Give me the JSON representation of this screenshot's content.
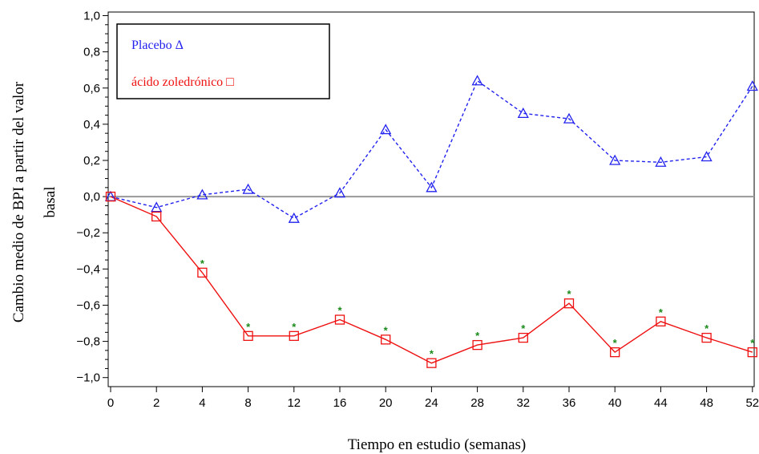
{
  "chart_data": {
    "type": "line",
    "xlabel": "Tiempo en estudio (semanas)",
    "ylabel_lines": [
      "Cambio medio de BPI a partir del valor",
      "basal"
    ],
    "categories": [
      "0",
      "2",
      "4",
      "8",
      "12",
      "16",
      "20",
      "24",
      "28",
      "32",
      "36",
      "40",
      "44",
      "48",
      "52"
    ],
    "y_ticks": [
      "1,0",
      "0,8",
      "0,6",
      "0,4",
      "0,2",
      "0,0",
      "−0,2",
      "−0,4",
      "−0,6",
      "−0,8",
      "−1,0"
    ],
    "y_tick_values": [
      1.0,
      0.8,
      0.6,
      0.4,
      0.2,
      0.0,
      -0.2,
      -0.4,
      -0.6,
      -0.8,
      -1.0
    ],
    "ylim": [
      -1.05,
      1.02
    ],
    "reference_line": 0.0,
    "series": [
      {
        "legend": "Placebo Δ",
        "marker": "triangle",
        "line": "dashed",
        "color": "#2222ee",
        "values": [
          0.0,
          -0.06,
          0.01,
          0.04,
          -0.12,
          0.02,
          0.37,
          0.05,
          0.64,
          0.46,
          0.43,
          0.2,
          0.19,
          0.22,
          0.61
        ]
      },
      {
        "legend": "ácido zoledrónico □",
        "marker": "square",
        "line": "solid",
        "color": "#ee1111",
        "values": [
          0.0,
          -0.11,
          -0.42,
          -0.77,
          -0.77,
          -0.68,
          -0.79,
          -0.92,
          -0.82,
          -0.78,
          -0.59,
          -0.86,
          -0.69,
          -0.78,
          -0.86
        ],
        "significant": [
          false,
          false,
          true,
          true,
          true,
          true,
          true,
          true,
          true,
          true,
          true,
          true,
          true,
          true,
          true
        ]
      }
    ],
    "significance_marker": "*",
    "significance_color": "#1a8a1a"
  }
}
